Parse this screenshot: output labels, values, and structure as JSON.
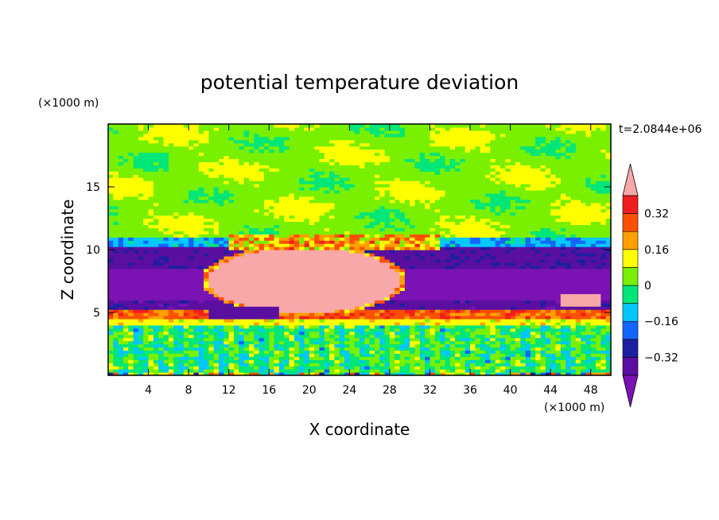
{
  "chart_data": {
    "type": "heatmap",
    "title": "potential temperature deviation",
    "xlabel": "X coordinate",
    "ylabel": "Z coordinate",
    "x_unit": "(×1000 m)",
    "y_unit": "(×1000 m)",
    "time_label": "t=2.0844e+06",
    "xlim": [
      0,
      50
    ],
    "ylim": [
      0,
      20
    ],
    "x_ticks": [
      4,
      8,
      12,
      16,
      20,
      24,
      28,
      32,
      36,
      40,
      44,
      48
    ],
    "y_ticks": [
      5,
      10,
      15
    ],
    "colorbar": {
      "levels": [
        -0.4,
        -0.32,
        -0.24,
        -0.16,
        -0.08,
        0,
        0.08,
        0.16,
        0.24,
        0.32,
        0.4
      ],
      "labeled_levels": [
        "0.32",
        "0.16",
        "0",
        "−0.16",
        "−0.32"
      ],
      "labeled_values": [
        0.32,
        0.16,
        0,
        -0.16,
        -0.32
      ],
      "colors": [
        "#7a12b4",
        "#5a0fa0",
        "#1e1ea0",
        "#1464ff",
        "#00c8ff",
        "#00e678",
        "#78f000",
        "#ffff00",
        "#ffa000",
        "#ff5000",
        "#f01e1e",
        "#f8a8a8"
      ],
      "extend": "both"
    }
  }
}
